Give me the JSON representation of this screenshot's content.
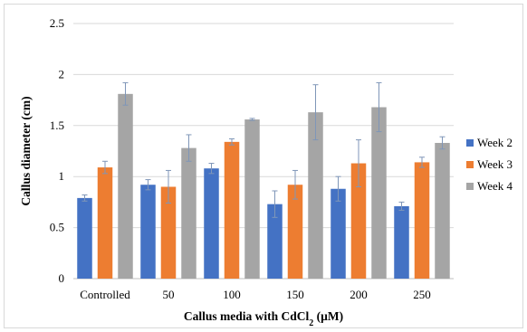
{
  "chart_data": {
    "type": "bar",
    "xlabel_main": "Callus media with CdCl",
    "xlabel_sub": "2",
    "xlabel_tail": " (µM)",
    "ylabel": "Callus diameter (cm)",
    "ylim": [
      0,
      2.5
    ],
    "yticks": [
      "0",
      "0.5",
      "1",
      "1.5",
      "2",
      "2.5"
    ],
    "ytick_values": [
      0,
      0.5,
      1,
      1.5,
      2,
      2.5
    ],
    "grid": true,
    "legend_position": "right",
    "categories": [
      "Controlled",
      "50",
      "100",
      "150",
      "200",
      "250"
    ],
    "series": [
      {
        "name": "Week 2",
        "color": "#4472c4",
        "values": [
          0.79,
          0.92,
          1.08,
          0.73,
          0.88,
          0.71
        ],
        "errors": [
          0.03,
          0.05,
          0.05,
          0.13,
          0.12,
          0.04
        ]
      },
      {
        "name": "Week 3",
        "color": "#ed7d31",
        "values": [
          1.09,
          0.9,
          1.34,
          0.92,
          1.13,
          1.14
        ],
        "errors": [
          0.06,
          0.16,
          0.03,
          0.14,
          0.23,
          0.05
        ]
      },
      {
        "name": "Week 4",
        "color": "#a5a5a5",
        "values": [
          1.81,
          1.28,
          1.56,
          1.63,
          1.68,
          1.33
        ],
        "errors": [
          0.11,
          0.13,
          0.01,
          0.27,
          0.24,
          0.06
        ]
      }
    ],
    "error_bar_color": "#7f96b8"
  }
}
